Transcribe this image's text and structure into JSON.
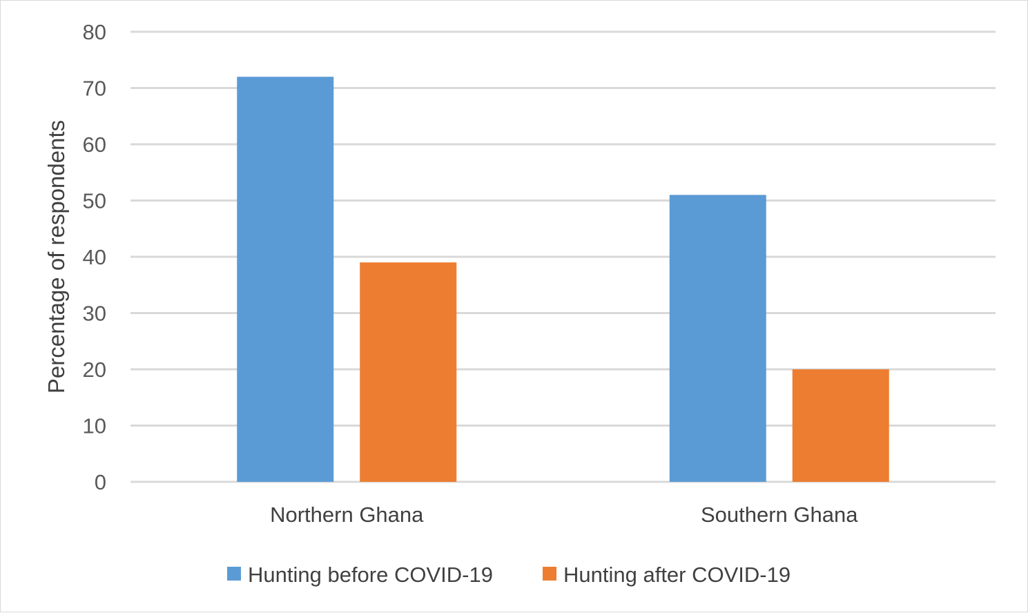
{
  "chart_data": {
    "type": "bar",
    "title": "",
    "xlabel": "",
    "ylabel": "Percentage of respondents",
    "ylim": [
      0,
      80
    ],
    "yticks": [
      0,
      10,
      20,
      30,
      40,
      50,
      60,
      70,
      80
    ],
    "categories": [
      "Northern Ghana",
      "Southern Ghana"
    ],
    "series": [
      {
        "name": "Hunting before COVID-19",
        "values": [
          72,
          51
        ],
        "color": "#5b9bd5"
      },
      {
        "name": "Hunting after COVID-19",
        "values": [
          39,
          20
        ],
        "color": "#ed7d31"
      }
    ],
    "grid": true,
    "legend_position": "bottom"
  }
}
